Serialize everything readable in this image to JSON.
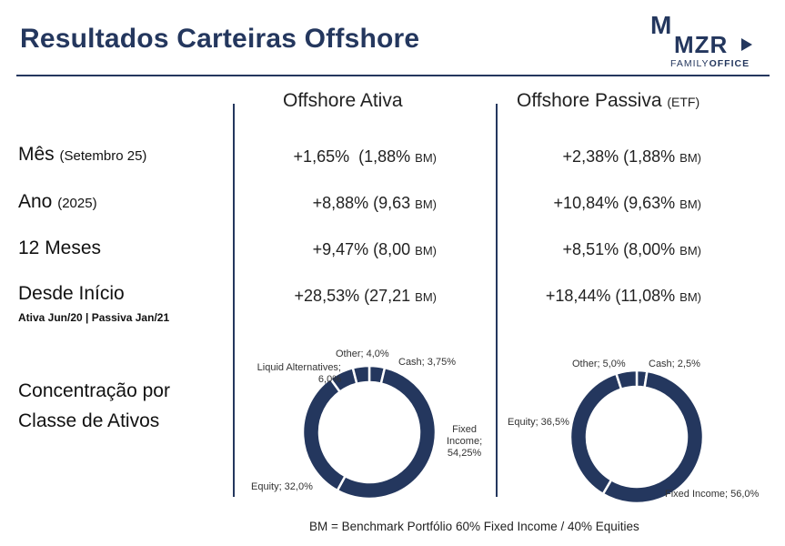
{
  "header": {
    "title": "Resultados Carteiras Offshore",
    "logo_mark": "M",
    "logo_name": "MZR",
    "logo_sub_a": "FAMILY",
    "logo_sub_b": "OFFICE"
  },
  "columns": {
    "ativa": "Offshore Ativa",
    "passiva": "Offshore Passiva",
    "passiva_suffix": "(ETF)"
  },
  "rows": [
    {
      "label": "Mês",
      "sub": "(Setembro 25)",
      "ativa": "+1,65%  (1,88%",
      "passiva": "+2,38% (1,88%"
    },
    {
      "label": "Ano",
      "sub": "(2025)",
      "ativa": "+8,88% (9,63",
      "passiva": "+10,84% (9,63%"
    },
    {
      "label": "12 Meses",
      "sub": "",
      "ativa": "+9,47% (8,00",
      "passiva": "+8,51% (8,00%"
    },
    {
      "label": "Desde Início",
      "sub": "",
      "ativa": "+28,53% (27,21",
      "passiva": "+18,44% (11,08%"
    }
  ],
  "bm_suffix": "BM)",
  "since_note": "Ativa  Jun/20 | Passiva Jan/21",
  "concentration": {
    "line1": "Concentração por",
    "line2": "Classe de Ativos"
  },
  "chart_data": [
    {
      "type": "pie",
      "donut": true,
      "name": "Offshore Ativa",
      "slices": [
        {
          "label": "Cash",
          "value": 3.75,
          "display": "Cash; 3,75%"
        },
        {
          "label": "Fixed Income",
          "value": 54.25,
          "display": [
            "Fixed",
            "Income;",
            "54,25%"
          ]
        },
        {
          "label": "Equity",
          "value": 32.0,
          "display": "Equity; 32,0%"
        },
        {
          "label": "Liquid Alternatives",
          "value": 6.0,
          "display": [
            "Liquid Alternatives;",
            "6,0%"
          ]
        },
        {
          "label": "Other",
          "value": 4.0,
          "display": "Other; 4,0%"
        }
      ],
      "color": "#24375e"
    },
    {
      "type": "pie",
      "donut": true,
      "name": "Offshore Passiva",
      "slices": [
        {
          "label": "Cash",
          "value": 2.5,
          "display": "Cash; 2,5%"
        },
        {
          "label": "Fixed Income",
          "value": 56.0,
          "display": "Fixed Income; 56,0%"
        },
        {
          "label": "Equity",
          "value": 36.5,
          "display": "Equity; 36,5%"
        },
        {
          "label": "Other",
          "value": 5.0,
          "display": "Other; 5,0%"
        }
      ],
      "color": "#24375e"
    }
  ],
  "footer": "BM = Benchmark Portfólio 60% Fixed Income / 40% Equities"
}
